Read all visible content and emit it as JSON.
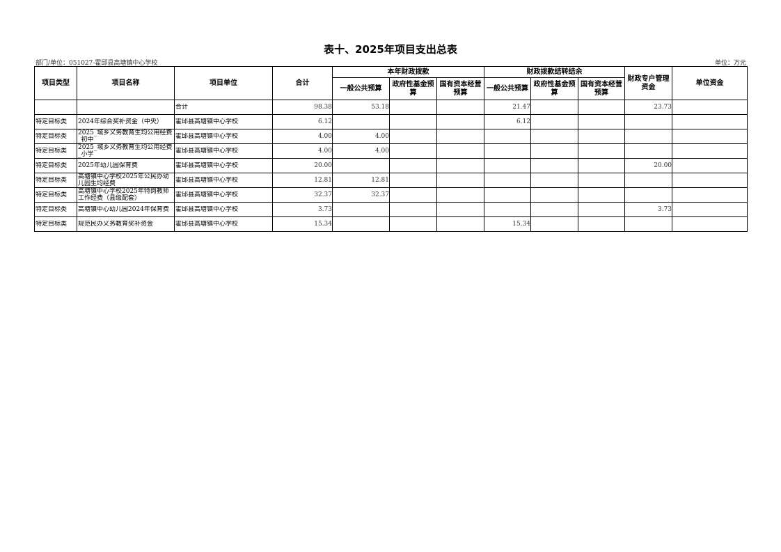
{
  "title": "表十、2025年项目支出总表",
  "department": "部门/单位：051027-霍邱县高塘镇中心学校",
  "unit": "单位：万元",
  "headers": {
    "type": "项目类型",
    "name": "项目名称",
    "org": "项目单位",
    "total": "合计",
    "current_year": "本年财政拨款",
    "carryover": "财政拨款结转结余",
    "special_account": "财政专户管理资金",
    "unit_funds": "单位资金",
    "general_budget": "一般公共预算",
    "gov_fund": "政府性基金预算",
    "state_capital": "国有资本经营预算",
    "cy_general_budget": "一般公共预算",
    "cy_gov_fund": "政府性基金预算",
    "cy_state_capital": "国有资本经营预算"
  },
  "rows": [
    {
      "type": "",
      "name": "",
      "org": "合计",
      "total": "98.38",
      "gen": "53.18",
      "fund": "",
      "cap": "",
      "c_gen": "21.47",
      "c_fund": "",
      "c_cap": "",
      "special": "23.73",
      "unitf": ""
    },
    {
      "type": "特定目标类",
      "name": "2024年综合奖补资金（中央）",
      "org": "霍邱县高塘镇中心学校",
      "total": "6.12",
      "gen": "",
      "fund": "",
      "cap": "",
      "c_gen": "6.12",
      "c_fund": "",
      "c_cap": "",
      "special": "",
      "unitf": ""
    },
    {
      "type": "特定目标类",
      "name": "2025_城乡义务教育生均公用经费_初中",
      "org": "霍邱县高塘镇中心学校",
      "total": "4.00",
      "gen": "4.00",
      "fund": "",
      "cap": "",
      "c_gen": "",
      "c_fund": "",
      "c_cap": "",
      "special": "",
      "unitf": ""
    },
    {
      "type": "特定目标类",
      "name": "2025_城乡义务教育生均公用经费_小学",
      "org": "霍邱县高塘镇中心学校",
      "total": "4.00",
      "gen": "4.00",
      "fund": "",
      "cap": "",
      "c_gen": "",
      "c_fund": "",
      "c_cap": "",
      "special": "",
      "unitf": ""
    },
    {
      "type": "特定目标类",
      "name": "2025年幼儿园保育费",
      "org": "霍邱县高塘镇中心学校",
      "total": "20.00",
      "gen": "",
      "fund": "",
      "cap": "",
      "c_gen": "",
      "c_fund": "",
      "c_cap": "",
      "special": "20.00",
      "unitf": ""
    },
    {
      "type": "特定目标类",
      "name": "高塘镇中心学校2025年公民办幼儿园生均经费",
      "org": "霍邱县高塘镇中心学校",
      "total": "12.81",
      "gen": "12.81",
      "fund": "",
      "cap": "",
      "c_gen": "",
      "c_fund": "",
      "c_cap": "",
      "special": "",
      "unitf": ""
    },
    {
      "type": "特定目标类",
      "name": "高塘镇中心学校2025年特岗教师工作经费（县级配套）",
      "org": "霍邱县高塘镇中心学校",
      "total": "32.37",
      "gen": "32.37",
      "fund": "",
      "cap": "",
      "c_gen": "",
      "c_fund": "",
      "c_cap": "",
      "special": "",
      "unitf": ""
    },
    {
      "type": "特定目标类",
      "name": "高塘镇中心幼儿园2024年保育费",
      "org": "霍邱县高塘镇中心学校",
      "total": "3.73",
      "gen": "",
      "fund": "",
      "cap": "",
      "c_gen": "",
      "c_fund": "",
      "c_cap": "",
      "special": "3.73",
      "unitf": ""
    },
    {
      "type": "特定目标类",
      "name": "规范民办义务教育奖补资金",
      "org": "霍邱县高塘镇中心学校",
      "total": "15.34",
      "gen": "",
      "fund": "",
      "cap": "",
      "c_gen": "15.34",
      "c_fund": "",
      "c_cap": "",
      "special": "",
      "unitf": ""
    }
  ]
}
